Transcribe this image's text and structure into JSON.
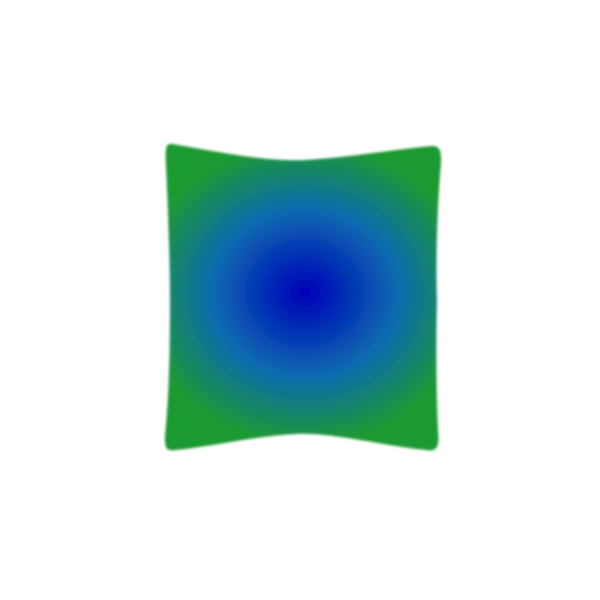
{
  "image": {
    "background_color": "#ffffff",
    "shape": {
      "kind": "pillow-gradient-shape",
      "center_color": "#0000b8",
      "middle_color": "#0a6ab0",
      "edge_color": "#1f9a30"
    }
  }
}
